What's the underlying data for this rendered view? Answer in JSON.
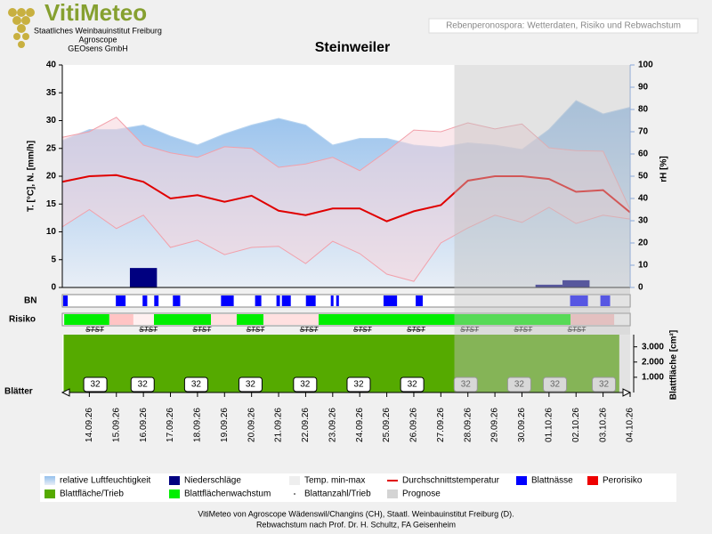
{
  "header": {
    "logo": "VitiMeteo",
    "lines": [
      "Staatliches Weinbauinstitut Freiburg",
      "Agroscope",
      "GEOsens GmbH"
    ]
  },
  "chart_data": {
    "type": "line",
    "title": "Steinweiler",
    "subtitle": "Rebenperonospora: Wetterdaten, Risiko und Rebwachstum",
    "y_label": "T. [°C], N. [mm/h]",
    "y2_label": "rH [%]",
    "categories": [
      null,
      "14.09.26",
      "15.09.26",
      "16.09.26",
      "17.09.26",
      "18.09.26",
      "19.09.26",
      "20.09.26",
      "21.09.26",
      "22.09.26",
      "23.09.26",
      "24.09.26",
      "25.09.26",
      "26.09.26",
      "27.09.26",
      "28.09.26",
      "29.09.26",
      "30.09.26",
      "01.10.26",
      "02.10.26",
      "03.10.26",
      "04.10.26"
    ],
    "ylim": [
      0,
      40
    ],
    "yticks": [
      0,
      5,
      10,
      15,
      20,
      25,
      30,
      35,
      40
    ],
    "y2lim": [
      0,
      100
    ],
    "y2ticks": [
      0,
      10,
      20,
      30,
      40,
      50,
      60,
      70,
      80,
      90,
      100
    ],
    "series": [
      {
        "name": "relative Luftfeuchtigkeit",
        "color": "#a4c8ee",
        "axis": "y2",
        "values": [
          66,
          71,
          71,
          73,
          68,
          64,
          69,
          73,
          76,
          73,
          64,
          67,
          67,
          64,
          63,
          65,
          64,
          62,
          71,
          84,
          78,
          81
        ]
      },
      {
        "name": "Niederschläge",
        "color": "#000080",
        "values": [
          0,
          0,
          0,
          3.5,
          0,
          0,
          0,
          0,
          0,
          0,
          0,
          0,
          0,
          0,
          0,
          0,
          0,
          0,
          0.5,
          1.3,
          0,
          0
        ]
      },
      {
        "name": "Temp. min-max",
        "color": "#f6d4da",
        "values": [
          27,
          28,
          30.6,
          25.6,
          24.2,
          23.4,
          25.3,
          25,
          21.6,
          22.2,
          23.4,
          21,
          24.5,
          28.3,
          28,
          29.6,
          28.5,
          29.4,
          25.1,
          24.6,
          24.5,
          14
        ],
        "values_low": [
          10.9,
          14,
          10.6,
          13,
          7.2,
          8.5,
          5.9,
          7.2,
          7.4,
          4.3,
          8.3,
          6.1,
          2.4,
          1.1,
          8,
          10.7,
          13,
          11.7,
          14.4,
          11.5,
          13,
          12.3
        ]
      },
      {
        "name": "Durchschnittstemperatur",
        "color": "#e00000",
        "values": [
          19,
          20,
          20.2,
          19,
          16,
          16.6,
          15.4,
          16.5,
          13.8,
          13,
          14.2,
          14.2,
          11.9,
          13.7,
          14.8,
          19.2,
          20,
          20,
          19.5,
          17.2,
          17.5,
          13.5
        ]
      }
    ],
    "leaf_wetness": {
      "label": "BN",
      "name": "Blattnässe",
      "color": "#0000ff",
      "intervals": [
        [
          0.03,
          0.2
        ],
        [
          1.98,
          2.34
        ],
        [
          2.97,
          3.14
        ],
        [
          3.4,
          3.56
        ],
        [
          4.09,
          4.36
        ],
        [
          5.87,
          6.34
        ],
        [
          7.13,
          7.36
        ],
        [
          7.92,
          8.05
        ],
        [
          8.12,
          8.45
        ],
        [
          9.01,
          9.37
        ],
        [
          9.93,
          10.03
        ],
        [
          10.13,
          10.23
        ],
        [
          11.88,
          12.38
        ],
        [
          13.07,
          13.33
        ],
        [
          18.78,
          19.44
        ],
        [
          19.9,
          20.26
        ]
      ]
    },
    "risk": {
      "label": "Risiko",
      "name": "Perorisiko",
      "color": "#ee0000",
      "growth_name": "Blattflächenwachstum",
      "growth_color": "#00ee00",
      "segments": [
        {
          "from": 0.07,
          "to": 1.74,
          "color": "#00ee00"
        },
        {
          "from": 1.74,
          "to": 2.63,
          "color": "#ffc4c4"
        },
        {
          "from": 2.63,
          "to": 3.39,
          "color": "#fff0f0"
        },
        {
          "from": 3.39,
          "to": 5.5,
          "color": "#00ee00"
        },
        {
          "from": 5.5,
          "to": 6.45,
          "color": "#ffe0e0"
        },
        {
          "from": 6.45,
          "to": 7.44,
          "color": "#00ee00"
        },
        {
          "from": 7.44,
          "to": 9.48,
          "color": "#ffe0e0"
        },
        {
          "from": 9.48,
          "to": 18.8,
          "color": "#00ee00"
        },
        {
          "from": 18.8,
          "to": 20.41,
          "color": "#ffc0c0"
        }
      ],
      "markers": [
        "STST",
        "STST",
        "STST",
        "STST",
        "STST",
        "STST",
        "STST",
        "STST",
        "STST",
        "STST"
      ]
    },
    "leaf_area": {
      "name": "Blattfläche/Trieb",
      "color": "#55aa00",
      "label": "Blattfläche [cm²]",
      "ylim": [
        0,
        3800
      ],
      "yticks": [
        {
          "value": 1000,
          "label": "1.000"
        },
        {
          "value": 2000,
          "label": "2.000"
        },
        {
          "value": 3000,
          "label": "3.000"
        }
      ],
      "x": [
        0.05,
        20.6
      ],
      "values": [
        3800,
        3800
      ]
    },
    "leaf_count": {
      "name": "Blattanzahl/Trieb",
      "label": "Blätter",
      "x": [
        1.22,
        2.97,
        4.95,
        6.96,
        8.98,
        10.96,
        12.94,
        14.92,
        16.9,
        18.22,
        20.03
      ],
      "values": [
        32,
        32,
        32,
        32,
        32,
        32,
        32,
        32,
        32,
        32,
        32
      ]
    },
    "prognosis": {
      "name": "Prognose",
      "color": "#d4d4d4",
      "from": "28.09.26"
    }
  },
  "footer": [
    "VitiMeteo von Agroscope Wädenswil/Changins (CH), Staatl. Weinbauinstitut Freiburg (D).",
    "Rebwachstum nach Prof. Dr. H. Schultz, FA Geisenheim"
  ]
}
